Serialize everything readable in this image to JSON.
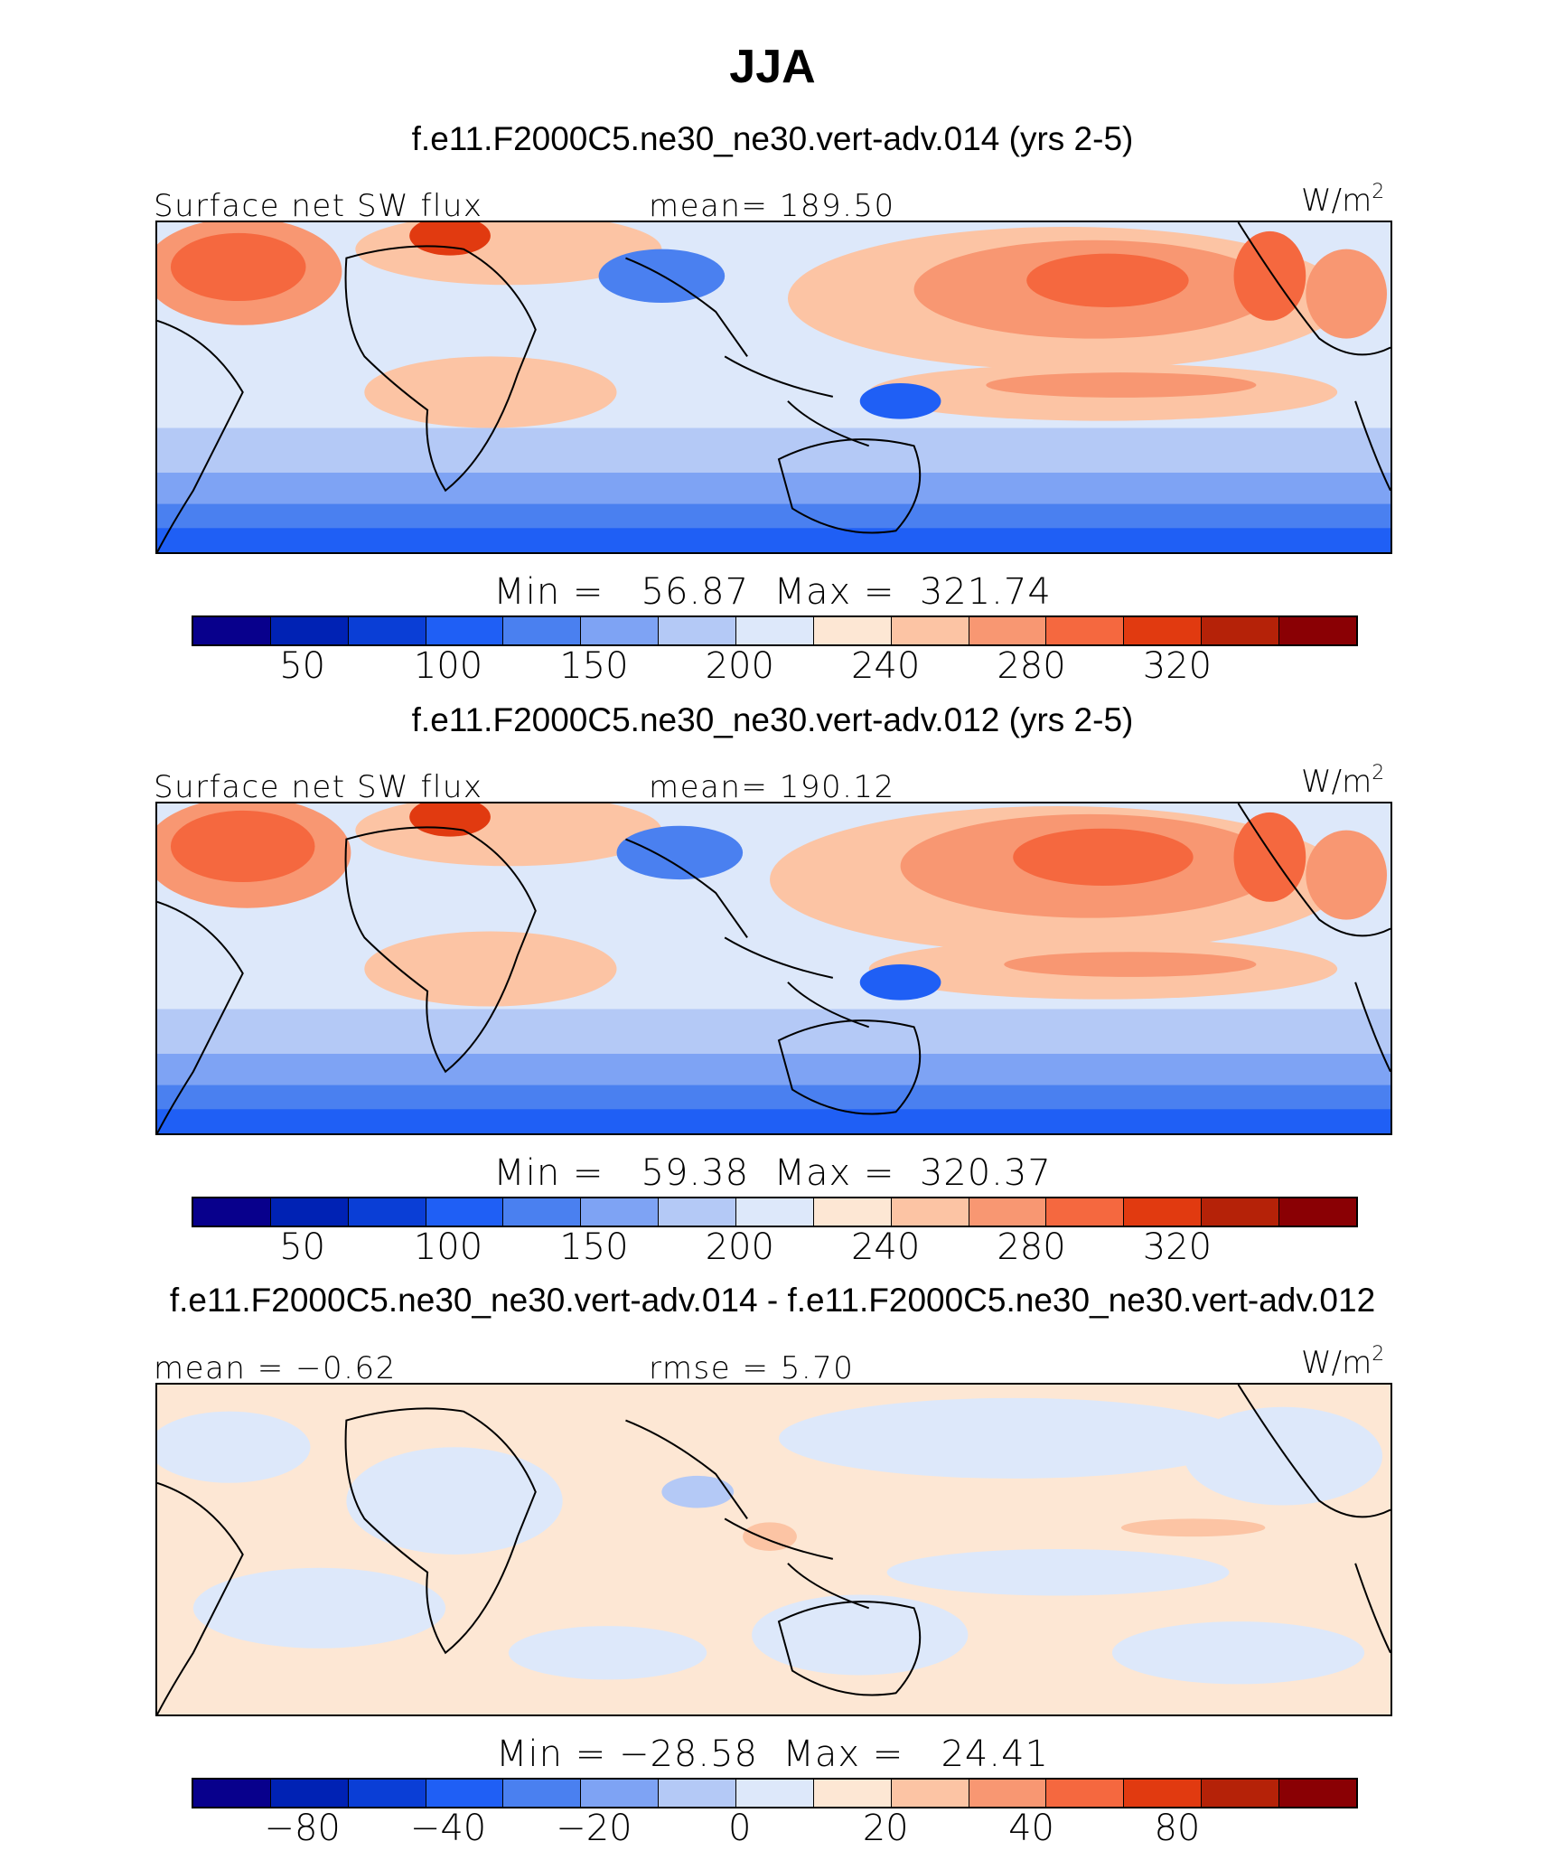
{
  "title": "JJA",
  "panels": [
    {
      "run_title": "f.e11.F2000C5.ne30_ne30.vert-adv.014 (yrs 2-5)",
      "left_label": "Surface net SW flux",
      "center_label": "mean= 189.50",
      "units": "W/m",
      "units_sup": "2",
      "minmax": "Min =   56.87  Max =  321.74",
      "ticks": [
        "50",
        "100",
        "150",
        "200",
        "240",
        "280",
        "320"
      ]
    },
    {
      "run_title": "f.e11.F2000C5.ne30_ne30.vert-adv.012 (yrs 2-5)",
      "left_label": "Surface net SW flux",
      "center_label": "mean= 190.12",
      "units": "W/m",
      "units_sup": "2",
      "minmax": "Min =   59.38  Max =  320.37",
      "ticks": [
        "50",
        "100",
        "150",
        "200",
        "240",
        "280",
        "320"
      ]
    },
    {
      "run_title": "f.e11.F2000C5.ne30_ne30.vert-adv.014 - f.e11.F2000C5.ne30_ne30.vert-adv.012",
      "left_label": "mean =  −0.62",
      "center_label": "rmse =     5.70",
      "units": "W/m",
      "units_sup": "2",
      "minmax": "Min = −28.58  Max =   24.41",
      "ticks": [
        "−80",
        "−40",
        "−20",
        "0",
        "20",
        "40",
        "80"
      ]
    }
  ],
  "colors": {
    "palette": [
      "#08008c",
      "#0022b4",
      "#0a3ed6",
      "#1f5ff5",
      "#4a80f0",
      "#7ea3f4",
      "#b4c9f6",
      "#dde8fa",
      "#fde7d4",
      "#fcc4a4",
      "#f89772",
      "#f5683f",
      "#e13a10",
      "#b52208",
      "#8a0004"
    ],
    "land_line": "#000000"
  }
}
